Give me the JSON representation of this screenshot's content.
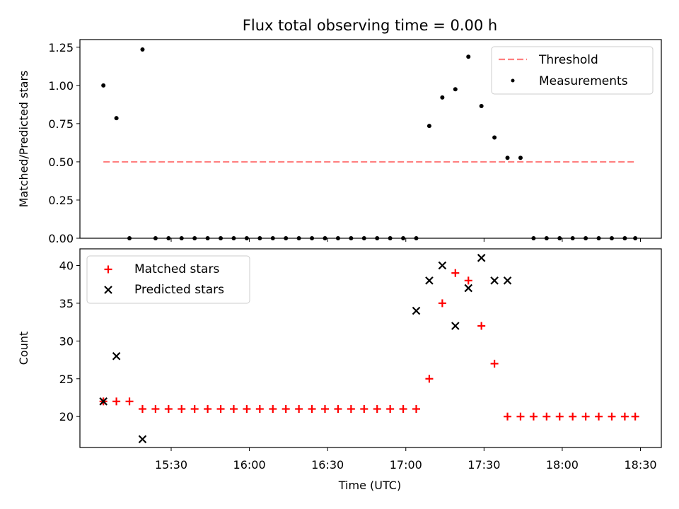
{
  "title": "Flux total observing time = 0.00 h",
  "xlabel": "Time (UTC)",
  "x_ticks": [
    "15:30",
    "16:00",
    "16:30",
    "17:00",
    "17:30",
    "18:00",
    "18:30"
  ],
  "x_tick_minutes": [
    930,
    960,
    990,
    1020,
    1050,
    1080,
    1110
  ],
  "x_range_minutes": [
    895,
    1118
  ],
  "colors": {
    "threshold": "#ff7f7f",
    "measurement": "#000000",
    "matched": "#ff0000",
    "predicted": "#000000"
  },
  "chart_data": [
    {
      "type": "scatter",
      "panel": "top",
      "ylabel": "Matched/Predicted stars",
      "ylim": [
        0,
        1.3
      ],
      "yticks": [
        "0.00",
        "0.25",
        "0.50",
        "0.75",
        "1.00",
        "1.25"
      ],
      "ytick_values": [
        0,
        0.25,
        0.5,
        0.75,
        1.0,
        1.25
      ],
      "legend_position": "top-right",
      "threshold": {
        "name": "Threshold",
        "x": [
          904,
          1108
        ],
        "y": 0.5
      },
      "measurements": {
        "name": "Measurements",
        "x": [
          904,
          909,
          914,
          919,
          924,
          929,
          934,
          939,
          944,
          949,
          954,
          959,
          964,
          969,
          974,
          979,
          984,
          989,
          994,
          999,
          1004,
          1009,
          1014,
          1019,
          1024,
          1029,
          1034,
          1039,
          1044,
          1049,
          1054,
          1059,
          1064,
          1069,
          1074,
          1079,
          1084,
          1089,
          1094,
          1099,
          1104,
          1108
        ],
        "y": [
          1.0,
          0.786,
          0.0,
          1.235,
          0.0,
          0.0,
          0.0,
          0.0,
          0.0,
          0.0,
          0.0,
          0.0,
          0.0,
          0.0,
          0.0,
          0.0,
          0.0,
          0.0,
          0.0,
          0.0,
          0.0,
          0.0,
          0.0,
          0.0,
          0.0,
          0.735,
          0.921,
          0.975,
          1.188,
          0.865,
          0.659,
          0.526,
          0.526,
          0.0,
          0.0,
          0.0,
          0.0,
          0.0,
          0.0,
          0.0,
          0.0,
          0.0
        ]
      }
    },
    {
      "type": "scatter",
      "panel": "bottom",
      "ylabel": "Count",
      "ylim": [
        15.9,
        42.2
      ],
      "yticks": [
        "20",
        "25",
        "30",
        "35",
        "40"
      ],
      "ytick_values": [
        20,
        25,
        30,
        35,
        40
      ],
      "legend_position": "top-left",
      "series": [
        {
          "name": "Matched stars",
          "marker": "+",
          "x": [
            904,
            909,
            914,
            919,
            924,
            929,
            934,
            939,
            944,
            949,
            954,
            959,
            964,
            969,
            974,
            979,
            984,
            989,
            994,
            999,
            1004,
            1009,
            1014,
            1019,
            1024,
            1029,
            1034,
            1039,
            1044,
            1049,
            1054,
            1059,
            1064,
            1069,
            1074,
            1079,
            1084,
            1089,
            1094,
            1099,
            1104,
            1108
          ],
          "y": [
            22,
            22,
            22,
            21,
            21,
            21,
            21,
            21,
            21,
            21,
            21,
            21,
            21,
            21,
            21,
            21,
            21,
            21,
            21,
            21,
            21,
            21,
            21,
            21,
            21,
            25,
            35,
            39,
            38,
            32,
            27,
            20,
            20,
            20,
            20,
            20,
            20,
            20,
            20,
            20,
            20,
            20
          ]
        },
        {
          "name": "Predicted stars",
          "marker": "x",
          "x": [
            904,
            909,
            919,
            1024,
            1029,
            1034,
            1039,
            1044,
            1049,
            1054,
            1059
          ],
          "y": [
            22,
            28,
            17,
            34,
            38,
            40,
            32,
            37,
            41,
            38,
            38
          ]
        }
      ]
    }
  ]
}
